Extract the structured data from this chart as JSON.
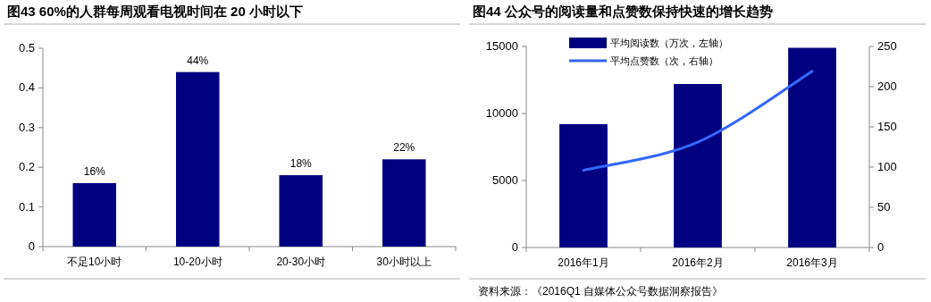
{
  "chart_data": [
    {
      "type": "bar",
      "title": "图43 60%的人群每周观看电视时间在 20 小时以下",
      "categories": [
        "不足10小时",
        "10-20小时",
        "20-30小时",
        "30小时以上"
      ],
      "values": [
        0.16,
        0.44,
        0.18,
        0.22
      ],
      "value_labels": [
        "16%",
        "44%",
        "18%",
        "22%"
      ],
      "color": "#000080",
      "ylim": [
        0,
        0.5
      ],
      "yticks": [
        0,
        0.1,
        0.2,
        0.3,
        0.4,
        0.5
      ]
    },
    {
      "type": "bar",
      "title": "图44 公众号的阅读量和点赞数保持快速的增长趋势",
      "categories": [
        "2016年1月",
        "2016年2月",
        "2016年3月"
      ],
      "series": [
        {
          "name": "平均阅读数（万次，左轴）",
          "color": "#000080",
          "values": [
            9200,
            12200,
            14900
          ]
        },
        {
          "name": "平均点赞数（次，右轴）",
          "type": "line",
          "axis": "y2",
          "color": "#3366ff",
          "values": [
            96,
            131,
            219
          ]
        }
      ],
      "ylim": [
        0,
        15000
      ],
      "yticks": [
        0,
        5000,
        10000,
        15000
      ],
      "y2lim": [
        0,
        250
      ],
      "y2ticks": [
        0,
        50,
        100,
        150,
        200,
        250
      ],
      "legend": "top",
      "annotations": [
        "资料来源：《2016Q1 自媒体公众号数据洞察报告》"
      ]
    }
  ]
}
